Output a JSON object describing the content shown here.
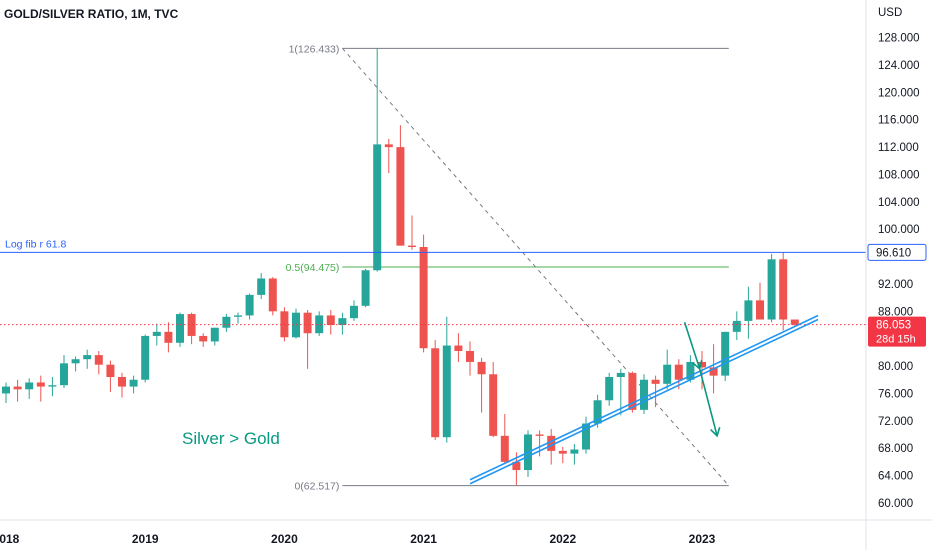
{
  "chart_data": {
    "type": "candlestick",
    "title": "GOLD/SILVER RATIO, 1M, TVC",
    "currency_label": "USD",
    "annotation_text": "Silver > Gold",
    "ylim": [
      57.5,
      133.5
    ],
    "y_ticks": [
      "128.000",
      "124.000",
      "120.000",
      "116.000",
      "112.000",
      "108.000",
      "104.000",
      "100.000",
      "96.000",
      "92.000",
      "88.000",
      "84.000",
      "80.000",
      "76.000",
      "72.000",
      "68.000",
      "64.000",
      "60.000"
    ],
    "x_ticks": [
      {
        "label": "2018",
        "month": 0
      },
      {
        "label": "2019",
        "month": 12
      },
      {
        "label": "2020",
        "month": 24
      },
      {
        "label": "2021",
        "month": 36
      },
      {
        "label": "2022",
        "month": 48
      },
      {
        "label": "2023",
        "month": 60
      }
    ],
    "start_label": "2017-10",
    "candles": [
      [
        76.0,
        77.6,
        74.6,
        77.0
      ],
      [
        77.0,
        78.0,
        74.8,
        76.6
      ],
      [
        76.6,
        78.2,
        75.2,
        77.6
      ],
      [
        77.6,
        78.6,
        74.8,
        77.0
      ],
      [
        77.0,
        78.4,
        75.6,
        77.2
      ],
      [
        77.2,
        81.6,
        76.8,
        80.4
      ],
      [
        80.4,
        81.4,
        79.2,
        81.0
      ],
      [
        81.0,
        82.4,
        79.6,
        81.6
      ],
      [
        81.6,
        82.2,
        78.8,
        80.2
      ],
      [
        80.2,
        80.8,
        76.2,
        78.4
      ],
      [
        78.4,
        79.0,
        75.4,
        77.0
      ],
      [
        77.0,
        78.6,
        76.0,
        78.0
      ],
      [
        78.0,
        84.6,
        77.6,
        84.4
      ],
      [
        84.4,
        86.2,
        83.0,
        85.0
      ],
      [
        85.0,
        86.4,
        82.0,
        83.4
      ],
      [
        83.4,
        87.8,
        82.8,
        87.6
      ],
      [
        87.6,
        87.8,
        83.2,
        84.4
      ],
      [
        84.4,
        84.8,
        82.8,
        83.6
      ],
      [
        83.6,
        85.6,
        83.0,
        85.6
      ],
      [
        85.6,
        87.6,
        85.0,
        87.2
      ],
      [
        87.2,
        87.8,
        86.2,
        87.4
      ],
      [
        87.4,
        90.6,
        86.8,
        90.4
      ],
      [
        90.4,
        93.6,
        89.8,
        92.8
      ],
      [
        92.8,
        93.0,
        87.4,
        88.0
      ],
      [
        88.0,
        88.6,
        83.6,
        84.2
      ],
      [
        84.2,
        88.4,
        84.0,
        87.8
      ],
      [
        87.8,
        88.2,
        79.6,
        84.8
      ],
      [
        84.8,
        88.0,
        84.4,
        87.4
      ],
      [
        87.4,
        88.2,
        84.6,
        86.0
      ],
      [
        86.0,
        87.8,
        84.6,
        87.0
      ],
      [
        87.0,
        89.6,
        86.6,
        88.8
      ],
      [
        88.8,
        94.2,
        88.6,
        94.0
      ],
      [
        94.0,
        126.4,
        93.8,
        112.4
      ],
      [
        112.4,
        113.2,
        108.2,
        112.0
      ],
      [
        112.0,
        115.2,
        97.6,
        97.6
      ],
      [
        97.6,
        102.0,
        97.0,
        97.4
      ],
      [
        97.4,
        99.2,
        82.0,
        82.6
      ],
      [
        82.6,
        83.8,
        69.2,
        69.6
      ],
      [
        69.6,
        87.2,
        68.8,
        83.0
      ],
      [
        83.0,
        84.8,
        80.6,
        82.2
      ],
      [
        82.2,
        83.6,
        78.6,
        80.6
      ],
      [
        80.6,
        81.2,
        73.2,
        78.8
      ],
      [
        78.8,
        80.6,
        69.6,
        69.8
      ],
      [
        69.8,
        73.0,
        65.8,
        66.0
      ],
      [
        66.0,
        67.4,
        62.6,
        64.8
      ],
      [
        64.8,
        70.6,
        63.8,
        70.0
      ],
      [
        70.0,
        70.6,
        66.8,
        69.8
      ],
      [
        69.8,
        70.8,
        65.6,
        67.6
      ],
      [
        67.6,
        68.2,
        65.8,
        67.2
      ],
      [
        67.2,
        68.6,
        65.6,
        67.8
      ],
      [
        67.8,
        72.6,
        67.2,
        71.6
      ],
      [
        71.6,
        75.8,
        71.0,
        75.0
      ],
      [
        75.0,
        79.0,
        74.2,
        78.4
      ],
      [
        78.4,
        79.6,
        72.8,
        79.0
      ],
      [
        79.0,
        79.2,
        73.2,
        73.6
      ],
      [
        73.6,
        78.8,
        73.0,
        78.0
      ],
      [
        78.0,
        78.6,
        74.0,
        77.4
      ],
      [
        77.4,
        82.4,
        76.6,
        80.2
      ],
      [
        80.2,
        81.0,
        76.6,
        78.0
      ],
      [
        78.0,
        81.6,
        77.6,
        80.6
      ],
      [
        80.6,
        82.2,
        76.6,
        79.8
      ],
      [
        79.8,
        83.2,
        76.0,
        78.6
      ],
      [
        78.6,
        85.0,
        77.8,
        85.0
      ],
      [
        85.0,
        88.0,
        83.8,
        86.6
      ],
      [
        86.6,
        91.6,
        84.0,
        89.6
      ],
      [
        89.6,
        92.2,
        86.8,
        86.8
      ],
      [
        86.8,
        96.4,
        86.4,
        95.6
      ],
      [
        95.6,
        96.6,
        85.2,
        86.8
      ],
      [
        86.8,
        86.8,
        85.8,
        86.05
      ]
    ],
    "fibonacci_retracement": {
      "levels": [
        {
          "label": "1(126.433)",
          "value": 126.433
        },
        {
          "label": "0.5(94.475)",
          "value": 94.475
        },
        {
          "label": "0(62.517)",
          "value": 62.517
        }
      ],
      "from_month": 29,
      "to_month": 58
    },
    "log_fib_line": {
      "label": "Log fib r 61.8",
      "value": 96.61
    },
    "price_labels": [
      {
        "text": "96.610",
        "value": 96.61
      },
      {
        "text": "86.053",
        "value": 86.053,
        "countdown": "28d 15h"
      }
    ],
    "trendline": {
      "from_month": 40,
      "from_value": 62.8,
      "to_month": 70,
      "to_value": 86.8
    },
    "projection": {
      "points": [
        [
          58.5,
          86.4
        ],
        [
          59.8,
          79.6
        ],
        [
          61.3,
          69.8
        ]
      ]
    },
    "colors": {
      "up": "#26a69a",
      "down": "#ef5350",
      "fib_line": "#787b86",
      "fib_mid": "#4caf50",
      "log_fib": "#2962ff",
      "current_price": "#f23645",
      "trendline": "#2196f3",
      "projection": "#089981",
      "annotation": "#089981"
    }
  }
}
